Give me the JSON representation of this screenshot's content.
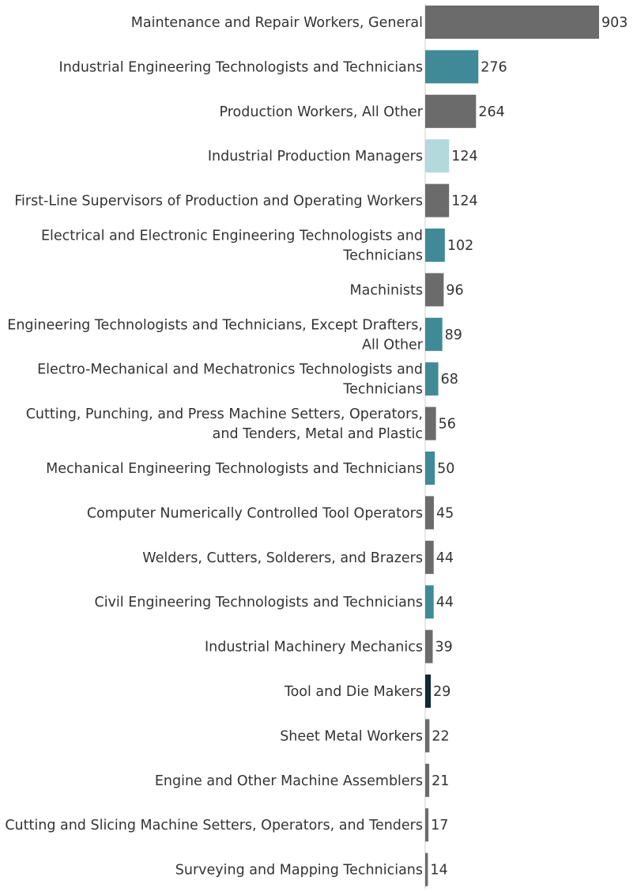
{
  "chart_data": {
    "type": "bar",
    "orientation": "horizontal",
    "title": "",
    "xlabel": "",
    "ylabel": "",
    "xlim": [
      0,
      903
    ],
    "colors": {
      "gray": "#6b6b6b",
      "teal": "#3f8a96",
      "light_teal": "#b3d9dc",
      "dark_navy": "#0e2a36"
    },
    "bars": [
      {
        "lines": [
          "Maintenance and Repair Workers, General"
        ],
        "value": 903,
        "color": "#6b6b6b"
      },
      {
        "lines": [
          "Industrial Engineering Technologists and Technicians"
        ],
        "value": 276,
        "color": "#3f8a96"
      },
      {
        "lines": [
          "Production Workers, All Other"
        ],
        "value": 264,
        "color": "#6b6b6b"
      },
      {
        "lines": [
          "Industrial Production Managers"
        ],
        "value": 124,
        "color": "#b3d9dc"
      },
      {
        "lines": [
          "First-Line Supervisors of Production and Operating Workers"
        ],
        "value": 124,
        "color": "#6b6b6b"
      },
      {
        "lines": [
          "Electrical and Electronic Engineering Technologists and",
          "Technicians"
        ],
        "value": 102,
        "color": "#3f8a96"
      },
      {
        "lines": [
          "Machinists"
        ],
        "value": 96,
        "color": "#6b6b6b"
      },
      {
        "lines": [
          "Engineering Technologists and Technicians, Except Drafters,",
          "All Other"
        ],
        "value": 89,
        "color": "#3f8a96"
      },
      {
        "lines": [
          "Electro-Mechanical and Mechatronics Technologists and",
          "Technicians"
        ],
        "value": 68,
        "color": "#3f8a96"
      },
      {
        "lines": [
          "Cutting, Punching, and Press Machine Setters, Operators,",
          "and Tenders, Metal and Plastic"
        ],
        "value": 56,
        "color": "#6b6b6b"
      },
      {
        "lines": [
          "Mechanical Engineering Technologists and Technicians"
        ],
        "value": 50,
        "color": "#3f8a96"
      },
      {
        "lines": [
          "Computer Numerically Controlled Tool Operators"
        ],
        "value": 45,
        "color": "#6b6b6b"
      },
      {
        "lines": [
          "Welders, Cutters, Solderers, and Brazers"
        ],
        "value": 44,
        "color": "#6b6b6b"
      },
      {
        "lines": [
          "Civil Engineering Technologists and Technicians"
        ],
        "value": 44,
        "color": "#3f8a96"
      },
      {
        "lines": [
          "Industrial Machinery Mechanics"
        ],
        "value": 39,
        "color": "#6b6b6b"
      },
      {
        "lines": [
          "Tool and Die Makers"
        ],
        "value": 29,
        "color": "#0e2a36"
      },
      {
        "lines": [
          "Sheet Metal Workers"
        ],
        "value": 22,
        "color": "#6b6b6b"
      },
      {
        "lines": [
          "Engine and Other Machine Assemblers"
        ],
        "value": 21,
        "color": "#6b6b6b"
      },
      {
        "lines": [
          "Cutting and Slicing Machine Setters, Operators, and Tenders"
        ],
        "value": 17,
        "color": "#6b6b6b"
      },
      {
        "lines": [
          "Surveying and Mapping Technicians"
        ],
        "value": 14,
        "color": "#6b6b6b"
      }
    ]
  }
}
